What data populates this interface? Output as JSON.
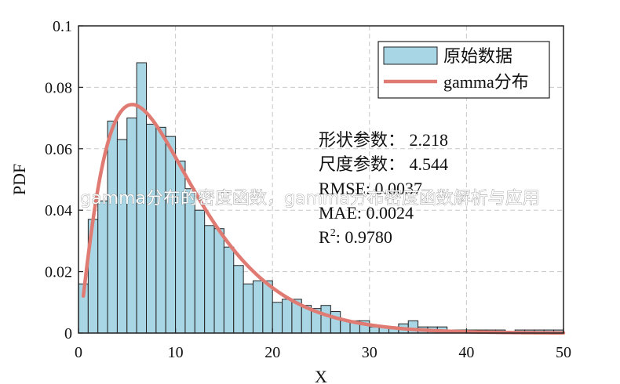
{
  "chart_data": {
    "type": "bar",
    "xlabel": "X",
    "ylabel": "PDF",
    "xlim": [
      0,
      50
    ],
    "ylim": [
      0,
      0.1
    ],
    "x_ticks": [
      "0",
      "10",
      "20",
      "30",
      "40",
      "50"
    ],
    "y_ticks": [
      "0",
      "0.02",
      "0.04",
      "0.06",
      "0.08",
      "0.1"
    ],
    "grid": true,
    "legend_position": "top-right",
    "histogram": {
      "name": "原始数据",
      "color": "#a9d6e5",
      "edge_color": "#222222",
      "bin_width": 1,
      "bin_starts": [
        0,
        1,
        2,
        3,
        4,
        5,
        6,
        7,
        8,
        9,
        10,
        11,
        12,
        13,
        14,
        15,
        16,
        17,
        18,
        19,
        20,
        21,
        22,
        23,
        24,
        25,
        26,
        27,
        28,
        29,
        30,
        31,
        32,
        33,
        34,
        35,
        36,
        37,
        38,
        39,
        40,
        41,
        42,
        43,
        44,
        45,
        46,
        47,
        48,
        49
      ],
      "values": [
        0.016,
        0.037,
        0.043,
        0.069,
        0.063,
        0.07,
        0.088,
        0.068,
        0.067,
        0.064,
        0.056,
        0.047,
        0.04,
        0.035,
        0.034,
        0.028,
        0.022,
        0.016,
        0.017,
        0.017,
        0.01,
        0.011,
        0.011,
        0.009,
        0.008,
        0.009,
        0.007,
        0.004,
        0.004,
        0.004,
        0.002,
        0.002,
        0.002,
        0.003,
        0.004,
        0.002,
        0.002,
        0.002,
        0.001,
        0.001,
        0.001,
        0.001,
        0.001,
        0.001,
        0.0,
        0.001,
        0.001,
        0.001,
        0.001,
        0.001
      ]
    },
    "curve": {
      "name": "gamma分布",
      "color": "#e07b73",
      "shape": 2.218,
      "scale": 4.544,
      "x_start": 0.5,
      "x_end": 50
    },
    "annotations": [
      {
        "label": "形状参数：",
        "value": "2.218"
      },
      {
        "label": "尺度参数：",
        "value": "4.544"
      },
      {
        "label": "RMSE: ",
        "value": "0.0037"
      },
      {
        "label": "MAE: ",
        "value": "0.0024"
      },
      {
        "label": "R",
        "sup": "2",
        "sep": ": ",
        "value": "0.9780"
      }
    ]
  },
  "overlay_caption": "gamma分布的密度函数，gamma分布密度函数解析与应用"
}
